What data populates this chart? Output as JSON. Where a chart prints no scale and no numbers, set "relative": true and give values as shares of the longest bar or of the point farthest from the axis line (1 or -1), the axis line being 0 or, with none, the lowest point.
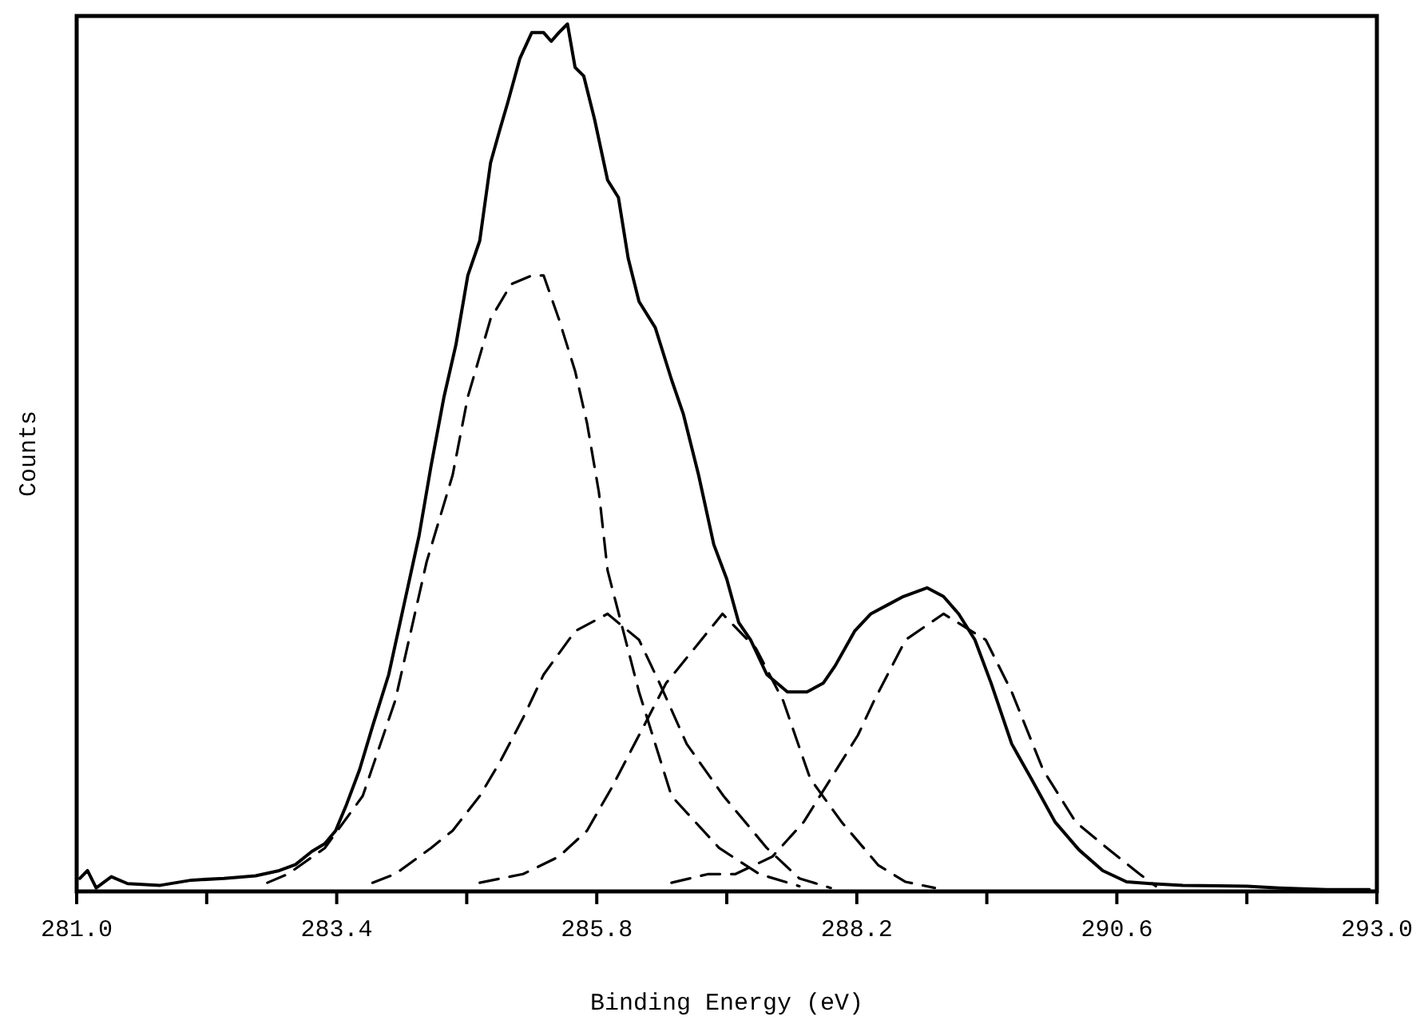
{
  "chart_data": {
    "type": "line",
    "relative": true,
    "xlabel": "Binding Energy (eV)",
    "ylabel": "Counts",
    "xlim": [
      281.0,
      293.0
    ],
    "xticks": [
      {
        "value": 281.0,
        "label": "281.0"
      },
      {
        "value": 282.2,
        "label": null
      },
      {
        "value": 283.4,
        "label": "283.4"
      },
      {
        "value": 284.6,
        "label": null
      },
      {
        "value": 285.8,
        "label": "285.8"
      },
      {
        "value": 287.0,
        "label": null
      },
      {
        "value": 288.2,
        "label": "288.2"
      },
      {
        "value": 289.4,
        "label": null
      },
      {
        "value": 290.6,
        "label": "290.6"
      },
      {
        "value": 291.8,
        "label": null
      },
      {
        "value": 293.0,
        "label": "293.0"
      }
    ],
    "grid": false,
    "marker": "none",
    "series": [
      {
        "color": "#000000",
        "line_style": "solid",
        "x": [
          281.03,
          281.1,
          281.18,
          281.32,
          281.47,
          281.77,
          282.06,
          282.36,
          282.65,
          282.87,
          283.02,
          283.17,
          283.29,
          283.39,
          283.49,
          283.61,
          283.73,
          283.88,
          284.02,
          284.16,
          284.27,
          284.39,
          284.5,
          284.61,
          284.72,
          284.82,
          284.91,
          284.98,
          285.09,
          285.2,
          285.31,
          285.38,
          285.45,
          285.53,
          285.6,
          285.68,
          285.78,
          285.9,
          286.0,
          286.09,
          286.19,
          286.34,
          286.49,
          286.6,
          286.74,
          286.88,
          287.0,
          287.11,
          287.22,
          287.37,
          287.56,
          287.74,
          287.89,
          288.0,
          288.18,
          288.33,
          288.48,
          288.63,
          288.85,
          289.0,
          289.14,
          289.29,
          289.44,
          289.63,
          289.81,
          290.03,
          290.25,
          290.47,
          290.69,
          290.91,
          291.21,
          291.8,
          292.1,
          292.54,
          292.93
        ],
        "values": [
          0.015,
          0.024,
          0.004,
          0.017,
          0.009,
          0.007,
          0.013,
          0.015,
          0.018,
          0.024,
          0.031,
          0.046,
          0.055,
          0.07,
          0.1,
          0.14,
          0.19,
          0.25,
          0.33,
          0.41,
          0.49,
          0.57,
          0.63,
          0.71,
          0.75,
          0.84,
          0.88,
          0.91,
          0.96,
          0.99,
          0.99,
          0.98,
          0.99,
          1.0,
          0.95,
          0.94,
          0.89,
          0.82,
          0.8,
          0.73,
          0.68,
          0.65,
          0.59,
          0.55,
          0.48,
          0.4,
          0.36,
          0.31,
          0.29,
          0.25,
          0.23,
          0.23,
          0.24,
          0.26,
          0.3,
          0.32,
          0.33,
          0.34,
          0.35,
          0.34,
          0.32,
          0.29,
          0.24,
          0.17,
          0.13,
          0.08,
          0.048,
          0.024,
          0.011,
          0.009,
          0.007,
          0.006,
          0.004,
          0.002,
          0.002
        ]
      },
      {
        "color": "#000000",
        "line_style": "dashed",
        "x": [
          282.76,
          282.95,
          283.29,
          283.64,
          283.94,
          284.23,
          284.47,
          284.61,
          284.82,
          285.01,
          285.2,
          285.31,
          285.45,
          285.6,
          285.71,
          285.82,
          285.9,
          286.19,
          286.49,
          286.93,
          287.3,
          287.67
        ],
        "values": [
          0.01,
          0.02,
          0.05,
          0.11,
          0.22,
          0.38,
          0.48,
          0.57,
          0.66,
          0.7,
          0.71,
          0.71,
          0.66,
          0.6,
          0.54,
          0.46,
          0.37,
          0.23,
          0.11,
          0.05,
          0.02,
          0.006
        ]
      },
      {
        "color": "#000000",
        "line_style": "dashed",
        "x": [
          283.73,
          283.94,
          284.27,
          284.47,
          284.72,
          284.91,
          285.12,
          285.31,
          285.6,
          285.9,
          286.19,
          286.38,
          286.63,
          286.97,
          287.37,
          287.67,
          287.96
        ],
        "values": [
          0.01,
          0.02,
          0.05,
          0.07,
          0.11,
          0.15,
          0.2,
          0.25,
          0.3,
          0.32,
          0.29,
          0.24,
          0.17,
          0.11,
          0.05,
          0.015,
          0.004
        ]
      },
      {
        "color": "#000000",
        "line_style": "dashed",
        "x": [
          284.72,
          285.12,
          285.45,
          285.71,
          285.94,
          286.19,
          286.44,
          286.96,
          287.27,
          287.52,
          287.77,
          288.06,
          288.4,
          288.65,
          288.92
        ],
        "values": [
          0.01,
          0.02,
          0.04,
          0.07,
          0.12,
          0.18,
          0.24,
          0.32,
          0.28,
          0.22,
          0.13,
          0.08,
          0.03,
          0.011,
          0.004
        ]
      },
      {
        "color": "#000000",
        "line_style": "dashed",
        "x": [
          286.49,
          286.83,
          287.08,
          287.42,
          287.71,
          287.96,
          288.21,
          288.36,
          288.65,
          289.0,
          289.39,
          289.63,
          289.92,
          290.22,
          290.51,
          290.81,
          290.96
        ],
        "values": [
          0.01,
          0.02,
          0.02,
          0.04,
          0.08,
          0.13,
          0.18,
          0.22,
          0.29,
          0.32,
          0.29,
          0.23,
          0.14,
          0.08,
          0.05,
          0.02,
          0.006
        ]
      }
    ]
  }
}
